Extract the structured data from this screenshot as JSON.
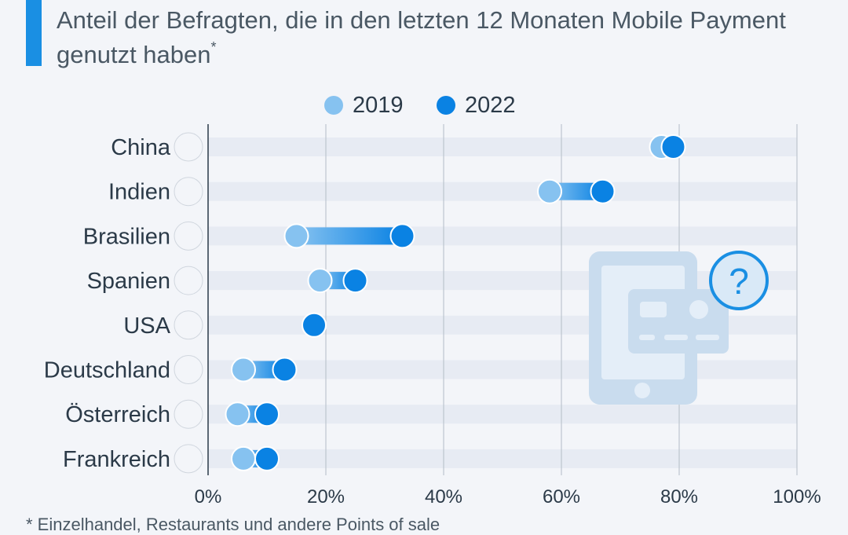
{
  "header": {
    "title": "Anteil der Befragten, die in den letzten 12 Monaten Mobile Payment genutzt haben",
    "title_mark": "*"
  },
  "footnote": "* Einzelhandel, Restaurants und andere Points of sale",
  "colors": {
    "accent": "#1a8fe3",
    "series_2019": "#86c2f0",
    "series_2022": "#0a82e3",
    "row_band": "#e7ebf3",
    "illustration": "#c9dcee"
  },
  "chart_data": {
    "type": "dumbbell",
    "title": "Anteil der Befragten, die in den letzten 12 Monaten Mobile Payment genutzt haben*",
    "unit": "%",
    "xlim": [
      0,
      100
    ],
    "ticks": [
      0,
      20,
      40,
      60,
      80,
      100
    ],
    "tick_labels": [
      "0%",
      "20%",
      "40%",
      "60%",
      "80%",
      "100%"
    ],
    "legend_position": "top-center",
    "categories": [
      "China",
      "Indien",
      "Brasilien",
      "Spanien",
      "USA",
      "Deutschland",
      "Österreich",
      "Frankreich"
    ],
    "flags": [
      "cn",
      "in",
      "br",
      "es",
      "us",
      "de",
      "at",
      "fr"
    ],
    "series": [
      {
        "name": "2019",
        "values": [
          77,
          58,
          15,
          19,
          18,
          6,
          5,
          6
        ]
      },
      {
        "name": "2022",
        "values": [
          79,
          67,
          33,
          25,
          18,
          13,
          10,
          10
        ]
      }
    ]
  }
}
